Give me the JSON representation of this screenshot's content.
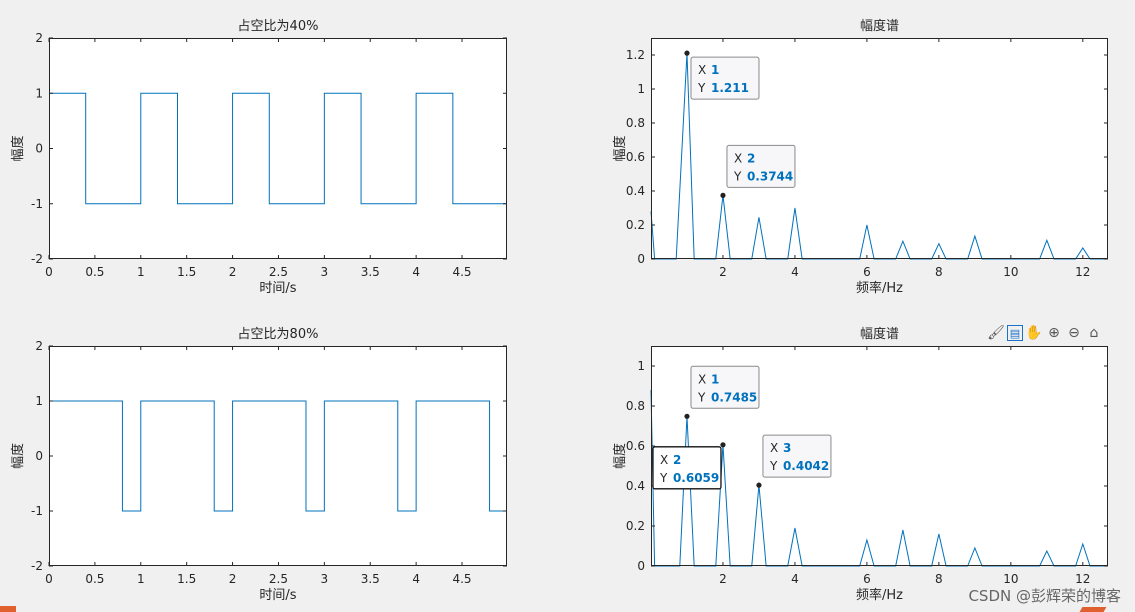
{
  "toolbar": {
    "icons": [
      "brush-icon",
      "datatip-icon",
      "pan-icon",
      "zoom-in-icon",
      "zoom-out-icon",
      "home-icon"
    ],
    "glyphs": [
      "🖌",
      "▤",
      "✋",
      "⊕",
      "⊖",
      "⌂"
    ]
  },
  "watermark": "CSDN @彭辉荣的博客",
  "colors": {
    "line": "#0072BD",
    "axes_bg": "#ffffff",
    "figure_bg": "#f0f0f0"
  },
  "chart_data": [
    {
      "type": "line",
      "title": "占空比为40%",
      "xlabel": "时间/s",
      "ylabel": "幅度",
      "xlim": [
        0,
        4.99
      ],
      "ylim": [
        -2,
        2
      ],
      "xticks": [
        0,
        0.5,
        1,
        1.5,
        2,
        2.5,
        3,
        3.5,
        4,
        4.5
      ],
      "xtick_labels": [
        "0",
        "0.5",
        "1",
        "1.5",
        "2",
        "2.5",
        "3",
        "3.5",
        "4",
        "4.5"
      ],
      "yticks": [
        -2,
        -1,
        0,
        1,
        2
      ],
      "ytick_labels": [
        "-2",
        "-1",
        "0",
        "1",
        "2"
      ],
      "series": [
        {
          "x": [
            0,
            0.4,
            0.4,
            1,
            1,
            1.4,
            1.4,
            2,
            2,
            2.4,
            2.4,
            3,
            3,
            3.4,
            3.4,
            4,
            4,
            4.4,
            4.4,
            4.99
          ],
          "y": [
            1,
            1,
            -1,
            -1,
            1,
            1,
            -1,
            -1,
            1,
            1,
            -1,
            -1,
            1,
            1,
            -1,
            -1,
            1,
            1,
            -1,
            -1
          ]
        }
      ],
      "datatips": []
    },
    {
      "type": "line",
      "title": "幅度谱",
      "xlabel": "频率/Hz",
      "ylabel": "幅度",
      "xlim": [
        0,
        12.7
      ],
      "ylim": [
        0,
        1.3
      ],
      "xticks": [
        2,
        4,
        6,
        8,
        10,
        12
      ],
      "xtick_labels": [
        "2",
        "4",
        "6",
        "8",
        "10",
        "12"
      ],
      "yticks": [
        0,
        0.2,
        0.4,
        0.6,
        0.8,
        1,
        1.2
      ],
      "ytick_labels": [
        "0",
        "0.2",
        "0.4",
        "0.6",
        "0.8",
        "1",
        "1.2"
      ],
      "series": [
        {
          "x": [
            0,
            0.1,
            0.7,
            1,
            1.2,
            1.8,
            2,
            2.2,
            2.8,
            3,
            3.2,
            3.8,
            4,
            4.2,
            5.8,
            6,
            6.2,
            6.8,
            7,
            7.2,
            7.8,
            8,
            8.2,
            8.8,
            9,
            9.2,
            10.8,
            11,
            11.2,
            11.8,
            12,
            12.2,
            12.7
          ],
          "y": [
            0.28,
            0,
            0,
            1.211,
            0,
            0,
            0.3744,
            0,
            0,
            0.245,
            0,
            0,
            0.3,
            0,
            0,
            0.2,
            0,
            0,
            0.105,
            0,
            0,
            0.09,
            0,
            0,
            0.135,
            0,
            0,
            0.11,
            0,
            0,
            0.065,
            0,
            0
          ]
        }
      ],
      "datatips": [
        {
          "x": 1,
          "y": 1.211,
          "x_text": "1",
          "y_text": "1.211",
          "side": "right-below",
          "active": false
        },
        {
          "x": 2,
          "y": 0.3744,
          "x_text": "2",
          "y_text": "0.3744",
          "side": "right-above",
          "active": false
        }
      ]
    },
    {
      "type": "line",
      "title": "占空比为80%",
      "xlabel": "时间/s",
      "ylabel": "幅度",
      "xlim": [
        0,
        4.99
      ],
      "ylim": [
        -2,
        2
      ],
      "xticks": [
        0,
        0.5,
        1,
        1.5,
        2,
        2.5,
        3,
        3.5,
        4,
        4.5
      ],
      "xtick_labels": [
        "0",
        "0.5",
        "1",
        "1.5",
        "2",
        "2.5",
        "3",
        "3.5",
        "4",
        "4.5"
      ],
      "yticks": [
        -2,
        -1,
        0,
        1,
        2
      ],
      "ytick_labels": [
        "-2",
        "-1",
        "0",
        "1",
        "2"
      ],
      "series": [
        {
          "x": [
            0,
            0.8,
            0.8,
            1,
            1,
            1.8,
            1.8,
            2,
            2,
            2.8,
            2.8,
            3,
            3,
            3.8,
            3.8,
            4,
            4,
            4.8,
            4.8,
            4.99
          ],
          "y": [
            1,
            1,
            -1,
            -1,
            1,
            1,
            -1,
            -1,
            1,
            1,
            -1,
            -1,
            1,
            1,
            -1,
            -1,
            1,
            1,
            -1,
            -1
          ]
        }
      ],
      "datatips": []
    },
    {
      "type": "line",
      "title": "幅度谱",
      "xlabel": "频率/Hz",
      "ylabel": "幅度",
      "xlim": [
        0,
        12.7
      ],
      "ylim": [
        0,
        1.1
      ],
      "xticks": [
        2,
        4,
        6,
        8,
        10,
        12
      ],
      "xtick_labels": [
        "2",
        "4",
        "6",
        "8",
        "10",
        "12"
      ],
      "yticks": [
        0,
        0.2,
        0.4,
        0.6,
        0.8,
        1
      ],
      "ytick_labels": [
        "0",
        "0.2",
        "0.4",
        "0.6",
        "0.8",
        "1"
      ],
      "series": [
        {
          "x": [
            0,
            0.1,
            0.8,
            1,
            1.2,
            1.8,
            2,
            2.2,
            2.8,
            3,
            3.2,
            3.8,
            4,
            4.2,
            5.8,
            6,
            6.2,
            6.8,
            7,
            7.2,
            7.8,
            8,
            8.2,
            8.8,
            9,
            9.2,
            10.8,
            11,
            11.2,
            11.8,
            12,
            12.2,
            12.7
          ],
          "y": [
            0.88,
            0,
            0,
            0.7485,
            0,
            0,
            0.6059,
            0,
            0,
            0.4042,
            0,
            0,
            0.19,
            0,
            0,
            0.13,
            0,
            0,
            0.18,
            0,
            0,
            0.16,
            0,
            0,
            0.09,
            0,
            0,
            0.075,
            0,
            0,
            0.11,
            0,
            0
          ]
        }
      ],
      "datatips": [
        {
          "x": 1,
          "y": 0.7485,
          "x_text": "1",
          "y_text": "0.7485",
          "side": "right-above",
          "active": false
        },
        {
          "x": 2,
          "y": 0.6059,
          "x_text": "2",
          "y_text": "0.6059",
          "side": "left-below",
          "active": true
        },
        {
          "x": 3,
          "y": 0.4042,
          "x_text": "3",
          "y_text": "0.4042",
          "side": "right-above",
          "active": false
        }
      ]
    }
  ]
}
